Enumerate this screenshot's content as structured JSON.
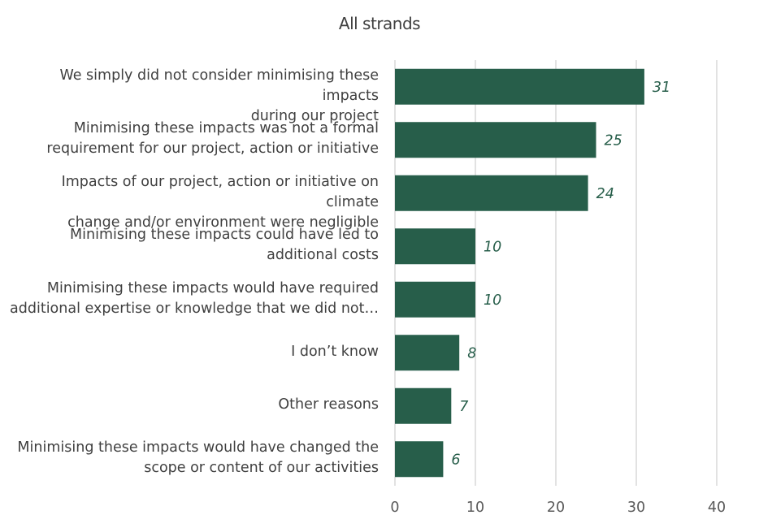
{
  "chart_data": {
    "type": "bar",
    "orientation": "horizontal",
    "title": "All strands",
    "categories": [
      "We simply did not consider minimising these impacts\nduring our project",
      "Minimising these impacts was not a formal\nrequirement for our project, action or initiative",
      "Impacts of our project, action or initiative on climate\nchange and/or environment were negligible",
      "Minimising these impacts could have led to\nadditional costs",
      "Minimising these impacts would have required\nadditional expertise or knowledge that we did not…",
      "I don’t know",
      "Other reasons",
      "Minimising these impacts would have changed the\nscope or content of our activities"
    ],
    "values": [
      31,
      25,
      24,
      10,
      10,
      8,
      7,
      6
    ],
    "data_labels": [
      "31",
      "25",
      "24",
      "10",
      "10",
      "8",
      "7",
      "6"
    ],
    "xlim": [
      0,
      40
    ],
    "xticks": [
      "0",
      "10",
      "20",
      "30",
      "40"
    ],
    "grid": true,
    "legend": "none",
    "bar_color": "#275e4a",
    "label_color": "#275e4a",
    "text_color": "#404040",
    "grid_color": "#d9d9d9"
  }
}
